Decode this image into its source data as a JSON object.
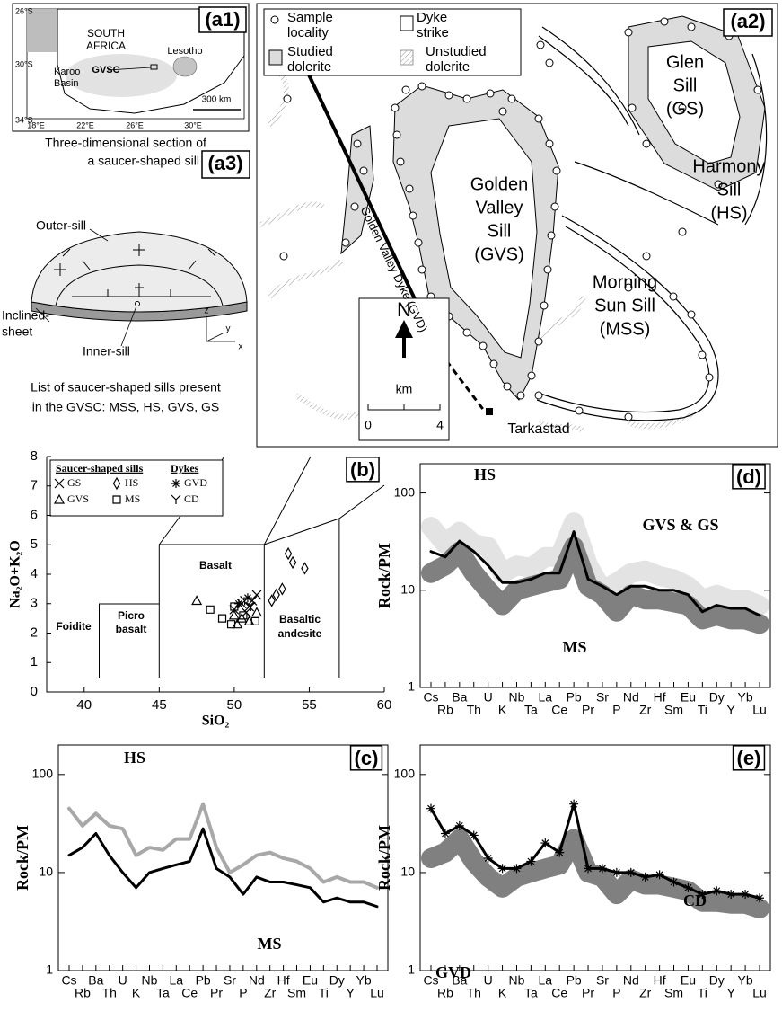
{
  "panels": {
    "a1": {
      "label": "(a1)",
      "country": [
        "SOUTH",
        "AFRICA"
      ],
      "lesotho": "Lesotho",
      "basin": [
        "Karoo",
        "Basin"
      ],
      "site": "GVSC",
      "scale": "300 km",
      "lat": [
        "26°S",
        "30°S",
        "34°S"
      ],
      "lon": [
        "18°E",
        "22°E",
        "26°E",
        "30°E"
      ]
    },
    "a2": {
      "label": "(a2)",
      "legend": [
        [
          "Sample",
          "locality"
        ],
        [
          "Studied",
          "dolerite"
        ],
        [
          "Dyke",
          "strike"
        ],
        [
          "Unstudied",
          "dolerite"
        ]
      ],
      "sills": [
        [
          "Glen",
          "Sill",
          "(GS)"
        ],
        [
          "Harmony",
          "Sill",
          "(HS)"
        ],
        [
          "Golden",
          "Valley",
          "Sill",
          "(GVS)"
        ],
        [
          "Morning",
          "Sun Sill",
          "(MSS)"
        ]
      ],
      "dyke": "Golden Valley Dyke (GVD)",
      "town": "Tarkastad",
      "north": "N",
      "scale_unit": "km",
      "scale_ticks": [
        0,
        4
      ]
    },
    "a3": {
      "label": "(a3)",
      "title": [
        "Three-dimensional section of",
        "a saucer-shaped sill"
      ],
      "outer": "Outer-sill",
      "inclined": [
        "Inclined-",
        "sheet"
      ],
      "inner": "Inner-sill",
      "axes": [
        "z",
        "y",
        "x"
      ],
      "caption": [
        "List of saucer-shaped sills present",
        "in the GVSC: MSS, HS, GVS, GS"
      ]
    }
  },
  "chart_data": [
    {
      "type": "scatter",
      "label": "(b)",
      "x_label": "SiO₂",
      "y_label": "Na₂O+K₂O",
      "xlim": [
        37.5,
        60
      ],
      "ylim": [
        0,
        8
      ],
      "xticks": [
        40,
        45,
        50,
        55,
        60
      ],
      "yticks": [
        0,
        1,
        2,
        3,
        4,
        5,
        6,
        7,
        8
      ],
      "legend_titles": [
        "Saucer-shaped sills",
        "Dykes"
      ],
      "field_labels": [
        "Foidite",
        "Picro",
        "basalt",
        "Basalt",
        "Basaltic",
        "andesite"
      ],
      "series": [
        {
          "name": "GS",
          "marker": "x",
          "color": "#000000",
          "x": [
            50.5,
            51,
            51.5,
            50,
            51.2,
            50.8
          ],
          "y": [
            3.0,
            2.9,
            3.3,
            2.8,
            3.1,
            2.7
          ]
        },
        {
          "name": "GVS",
          "marker": "triangle",
          "color": "#000000",
          "x": [
            47.5,
            50,
            50.5,
            51,
            51.5,
            50.2
          ],
          "y": [
            3.1,
            2.6,
            2.5,
            2.4,
            2.7,
            2.3
          ]
        },
        {
          "name": "HS",
          "marker": "diamond",
          "color": "#000000",
          "x": [
            53.6,
            53.9,
            54.7,
            53.2,
            52.5,
            52.8
          ],
          "y": [
            4.7,
            4.4,
            4.2,
            3.5,
            3.1,
            3.3
          ]
        },
        {
          "name": "MS",
          "marker": "square",
          "color": "#000000",
          "x": [
            48.4,
            49.2,
            49.8,
            50.6,
            51.4,
            50.0
          ],
          "y": [
            2.8,
            2.5,
            2.3,
            2.6,
            2.4,
            2.9
          ]
        },
        {
          "name": "GVD",
          "marker": "asterisk",
          "color": "#000000",
          "x": [
            50.3,
            50.9
          ],
          "y": [
            3.0,
            3.2
          ]
        },
        {
          "name": "CD",
          "marker": "tee",
          "color": "#000000",
          "x": [
            51.1,
            50.7
          ],
          "y": [
            2.9,
            3.1
          ]
        }
      ]
    },
    {
      "type": "line",
      "label": "(c)",
      "y_label": "Rock/PM",
      "log_y": true,
      "ylim": [
        1,
        200
      ],
      "yticks": [
        1,
        10,
        100
      ],
      "categories": [
        "Cs",
        "Rb",
        "Ba",
        "Th",
        "U",
        "K",
        "Nb",
        "Ta",
        "La",
        "Ce",
        "Pb",
        "Pr",
        "Sr",
        "P",
        "Nd",
        "Zr",
        "Hf",
        "Sm",
        "Eu",
        "Ti",
        "Dy",
        "Y",
        "Yb",
        "Lu"
      ],
      "series": [
        {
          "name": "HS",
          "style": "line",
          "color": "#a8a8a8",
          "values": [
            45,
            30,
            40,
            30,
            28,
            15,
            18,
            17,
            22,
            22,
            50,
            18,
            10,
            12,
            15,
            16,
            14,
            13,
            11,
            8,
            9,
            8,
            8,
            7
          ]
        },
        {
          "name": "MS",
          "style": "line",
          "color": "#000000",
          "values": [
            15,
            18,
            25,
            15,
            10,
            7,
            10,
            11,
            12,
            13,
            28,
            11,
            9,
            6,
            9,
            8,
            8,
            7.5,
            7,
            5,
            5.5,
            5,
            5,
            4.5
          ]
        }
      ]
    },
    {
      "type": "line",
      "label": "(d)",
      "y_label": "Rock/PM",
      "log_y": true,
      "ylim": [
        1,
        200
      ],
      "yticks": [
        1,
        10,
        100
      ],
      "categories": [
        "Cs",
        "Rb",
        "Ba",
        "Th",
        "U",
        "K",
        "Nb",
        "Ta",
        "La",
        "Ce",
        "Pb",
        "Pr",
        "Sr",
        "P",
        "Nd",
        "Zr",
        "Hf",
        "Sm",
        "Eu",
        "Ti",
        "Dy",
        "Y",
        "Yb",
        "Lu"
      ],
      "series": [
        {
          "name": "HS",
          "style": "band",
          "color": "#e3e3e3",
          "values": [
            45,
            30,
            40,
            30,
            28,
            15,
            18,
            17,
            22,
            22,
            50,
            18,
            10,
            12,
            15,
            16,
            14,
            13,
            11,
            8,
            9,
            8,
            8,
            7
          ]
        },
        {
          "name": "MS",
          "style": "band",
          "color": "#808080",
          "values": [
            15,
            18,
            25,
            15,
            10,
            7,
            10,
            11,
            12,
            13,
            28,
            11,
            9,
            6,
            9,
            8,
            8,
            7.5,
            7,
            5,
            5.5,
            5,
            5,
            4.5
          ]
        },
        {
          "name": "GVS & GS",
          "style": "line",
          "color": "#000000",
          "values": [
            25,
            22,
            32,
            25,
            18,
            12,
            12,
            13,
            15,
            15,
            40,
            13,
            11,
            9,
            11,
            11,
            10,
            10,
            9,
            6,
            7,
            6.5,
            6.5,
            5.5
          ]
        }
      ]
    },
    {
      "type": "line",
      "label": "(e)",
      "y_label": "Rock/PM",
      "log_y": true,
      "ylim": [
        1,
        200
      ],
      "yticks": [
        1,
        10,
        100
      ],
      "categories": [
        "Cs",
        "Rb",
        "Ba",
        "Th",
        "U",
        "K",
        "Nb",
        "Ta",
        "La",
        "Ce",
        "Pb",
        "Pr",
        "Sr",
        "P",
        "Nd",
        "Zr",
        "Hf",
        "Sm",
        "Eu",
        "Ti",
        "Dy",
        "Y",
        "Yb",
        "Lu"
      ],
      "series": [
        {
          "name": "GVD",
          "style": "band",
          "color": "#808080",
          "values": [
            14,
            16,
            22,
            13,
            9,
            7,
            9,
            10,
            11,
            12,
            22,
            10,
            9,
            6,
            8.5,
            7.5,
            7.5,
            7,
            6.5,
            5,
            5,
            4.8,
            4.8,
            4.3
          ]
        },
        {
          "name": "CD",
          "style": "line",
          "marker": "asterisk",
          "color": "#000000",
          "values": [
            45,
            25,
            30,
            24,
            14,
            11,
            11,
            13,
            20,
            16,
            50,
            11,
            11,
            10,
            10,
            9,
            9.5,
            8,
            7,
            6,
            6.5,
            6,
            6,
            5.5
          ]
        }
      ]
    }
  ]
}
